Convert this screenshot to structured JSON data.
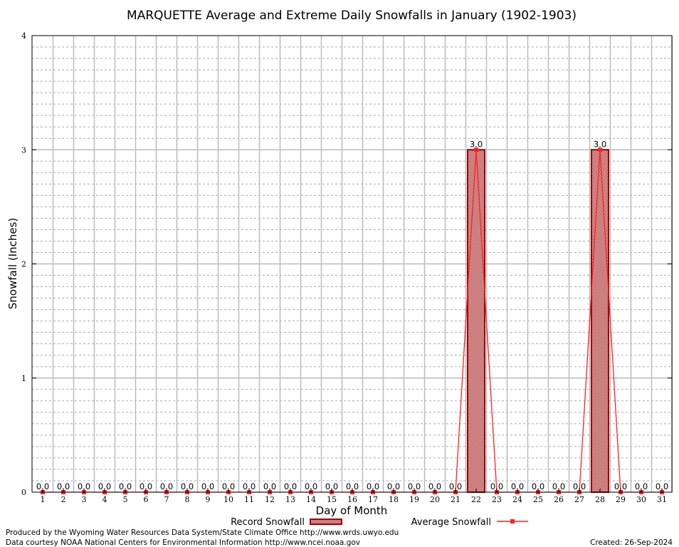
{
  "chart_data": {
    "type": "bar",
    "title": "MARQUETTE Average and Extreme Daily Snowfalls in January (1902-1903)",
    "xlabel": "Day of Month",
    "ylabel": "Snowfall (Inches)",
    "ylim": [
      0,
      4
    ],
    "yticks": [
      "0",
      "1",
      "2",
      "3",
      "4"
    ],
    "categories": [
      "1",
      "2",
      "3",
      "4",
      "5",
      "6",
      "7",
      "8",
      "9",
      "10",
      "11",
      "12",
      "13",
      "14",
      "15",
      "16",
      "17",
      "18",
      "19",
      "20",
      "21",
      "22",
      "23",
      "24",
      "25",
      "26",
      "27",
      "28",
      "29",
      "30",
      "31"
    ],
    "series": [
      {
        "name": "Record Snowfall",
        "type": "bar",
        "color": "#990000",
        "values": [
          0,
          0,
          0,
          0,
          0,
          0,
          0,
          0,
          0,
          0,
          0,
          0,
          0,
          0,
          0,
          0,
          0,
          0,
          0,
          0,
          0,
          3.0,
          0,
          0,
          0,
          0,
          0,
          3.0,
          0,
          0,
          0
        ]
      },
      {
        "name": "Average Snowfall",
        "type": "line",
        "color": "#ff2020",
        "values": [
          0,
          0,
          0,
          0,
          0,
          0,
          0,
          0,
          0,
          0,
          0,
          0,
          0,
          0,
          0,
          0,
          0,
          0,
          0,
          0,
          0,
          3.0,
          0,
          0,
          0,
          0,
          0,
          3.0,
          0,
          0,
          0
        ]
      }
    ],
    "data_labels": [
      "0.0",
      "0.0",
      "0.0",
      "0.0",
      "0.0",
      "0.0",
      "0.0",
      "0.0",
      "0.0",
      "0.0",
      "0.0",
      "0.0",
      "0.0",
      "0.0",
      "0.0",
      "0.0",
      "0.0",
      "0.0",
      "0.0",
      "0.0",
      "0.0",
      "3.0",
      "0.0",
      "0.0",
      "0.0",
      "0.0",
      "0.0",
      "3.0",
      "0.0",
      "0.0",
      "0.0"
    ],
    "grid": true,
    "legend": "bottom"
  },
  "footer": {
    "produced": "Produced by the Wyoming Water Resources Data System/State Climate Office http://www.wrds.uwyo.edu",
    "courtesy": "Data courtesy NOAA National Centers for Environmental Information http://www.ncei.noaa.gov",
    "created": "Created:  26-Sep-2024"
  }
}
